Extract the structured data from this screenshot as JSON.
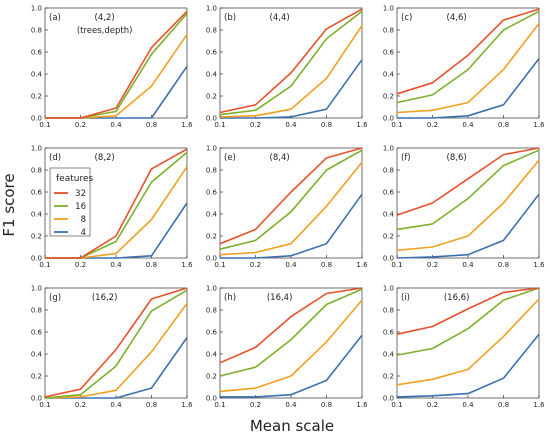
{
  "figure": {
    "xlabel": "Mean scale",
    "ylabel": "F1 score",
    "legend": {
      "title": "features",
      "location": "panel (d) left",
      "entries": [
        {
          "label": "32",
          "color": "#e8502a"
        },
        {
          "label": "16",
          "color": "#7bb02a"
        },
        {
          "label": "8",
          "color": "#f0a020"
        },
        {
          "label": "4",
          "color": "#3d6fb0"
        }
      ]
    },
    "panel_annotation": "(trees,depth)"
  },
  "chart_data": [
    {
      "type": "line",
      "panel": "(a)",
      "title": "(4,2)",
      "x": [
        0.1,
        0.2,
        0.4,
        0.8,
        1.6
      ],
      "xticks": [
        "0.1",
        "0.2",
        "0.4",
        "0.8",
        "1.6"
      ],
      "yticks": [
        "0.0",
        "0.2",
        "0.4",
        "0.6",
        "0.8",
        "1.0"
      ],
      "ylim": [
        0,
        1
      ],
      "xscale": "log2",
      "series": [
        {
          "name": "32",
          "color": "#e8502a",
          "values": [
            0.0,
            0.0,
            0.09,
            0.64,
            0.97
          ]
        },
        {
          "name": "16",
          "color": "#7bb02a",
          "values": [
            0.0,
            0.0,
            0.06,
            0.58,
            0.95
          ]
        },
        {
          "name": "8",
          "color": "#f0a020",
          "values": [
            0.0,
            0.0,
            0.02,
            0.29,
            0.76
          ]
        },
        {
          "name": "4",
          "color": "#3d6fb0",
          "values": [
            0.0,
            0.0,
            0.0,
            0.0,
            0.47
          ]
        }
      ]
    },
    {
      "type": "line",
      "panel": "(b)",
      "title": "(4,4)",
      "x": [
        0.1,
        0.2,
        0.4,
        0.8,
        1.6
      ],
      "xticks": [
        "0.1",
        "0.2",
        "0.4",
        "0.8",
        "1.6"
      ],
      "yticks": [
        "0.0",
        "0.2",
        "0.4",
        "0.6",
        "0.8",
        "1.0"
      ],
      "ylim": [
        0,
        1
      ],
      "xscale": "log2",
      "series": [
        {
          "name": "32",
          "color": "#e8502a",
          "values": [
            0.05,
            0.12,
            0.41,
            0.81,
            0.99
          ]
        },
        {
          "name": "16",
          "color": "#7bb02a",
          "values": [
            0.03,
            0.07,
            0.29,
            0.72,
            0.97
          ]
        },
        {
          "name": "8",
          "color": "#f0a020",
          "values": [
            0.01,
            0.02,
            0.08,
            0.36,
            0.84
          ]
        },
        {
          "name": "4",
          "color": "#3d6fb0",
          "values": [
            0.0,
            0.0,
            0.01,
            0.08,
            0.53
          ]
        }
      ]
    },
    {
      "type": "line",
      "panel": "(c)",
      "title": "(4,6)",
      "x": [
        0.1,
        0.2,
        0.4,
        0.8,
        1.6
      ],
      "xticks": [
        "0.1",
        "0.2",
        "0.4",
        "0.8",
        "1.6"
      ],
      "yticks": [
        "0.0",
        "0.2",
        "0.4",
        "0.6",
        "0.8",
        "1.0"
      ],
      "ylim": [
        0,
        1
      ],
      "xscale": "log2",
      "series": [
        {
          "name": "32",
          "color": "#e8502a",
          "values": [
            0.22,
            0.32,
            0.57,
            0.89,
            0.99
          ]
        },
        {
          "name": "16",
          "color": "#7bb02a",
          "values": [
            0.14,
            0.21,
            0.44,
            0.8,
            0.97
          ]
        },
        {
          "name": "8",
          "color": "#f0a020",
          "values": [
            0.05,
            0.07,
            0.14,
            0.44,
            0.86
          ]
        },
        {
          "name": "4",
          "color": "#3d6fb0",
          "values": [
            0.0,
            0.0,
            0.02,
            0.12,
            0.54
          ]
        }
      ]
    },
    {
      "type": "line",
      "panel": "(d)",
      "title": "(8,2)",
      "x": [
        0.1,
        0.2,
        0.4,
        0.8,
        1.6
      ],
      "xticks": [
        "0.1",
        "0.2",
        "0.4",
        "0.8",
        "1.6"
      ],
      "yticks": [
        "0.0",
        "0.2",
        "0.4",
        "0.6",
        "0.8",
        "1.0"
      ],
      "ylim": [
        0,
        1
      ],
      "xscale": "log2",
      "series": [
        {
          "name": "32",
          "color": "#e8502a",
          "values": [
            0.0,
            0.0,
            0.2,
            0.81,
            0.99
          ]
        },
        {
          "name": "16",
          "color": "#7bb02a",
          "values": [
            0.0,
            0.0,
            0.15,
            0.69,
            0.96
          ]
        },
        {
          "name": "8",
          "color": "#f0a020",
          "values": [
            0.0,
            0.0,
            0.04,
            0.35,
            0.83
          ]
        },
        {
          "name": "4",
          "color": "#3d6fb0",
          "values": [
            0.0,
            0.0,
            0.0,
            0.02,
            0.5
          ]
        }
      ]
    },
    {
      "type": "line",
      "panel": "(e)",
      "title": "(8,4)",
      "x": [
        0.1,
        0.2,
        0.4,
        0.8,
        1.6
      ],
      "xticks": [
        "0.1",
        "0.2",
        "0.4",
        "0.8",
        "1.6"
      ],
      "yticks": [
        "0.0",
        "0.2",
        "0.4",
        "0.6",
        "0.8",
        "1.0"
      ],
      "ylim": [
        0,
        1
      ],
      "xscale": "log2",
      "series": [
        {
          "name": "32",
          "color": "#e8502a",
          "values": [
            0.13,
            0.26,
            0.6,
            0.91,
            1.0
          ]
        },
        {
          "name": "16",
          "color": "#7bb02a",
          "values": [
            0.08,
            0.16,
            0.42,
            0.8,
            0.98
          ]
        },
        {
          "name": "8",
          "color": "#f0a020",
          "values": [
            0.03,
            0.05,
            0.13,
            0.47,
            0.87
          ]
        },
        {
          "name": "4",
          "color": "#3d6fb0",
          "values": [
            0.0,
            0.0,
            0.02,
            0.13,
            0.58
          ]
        }
      ]
    },
    {
      "type": "line",
      "panel": "(f)",
      "title": "(8,6)",
      "x": [
        0.1,
        0.2,
        0.4,
        0.8,
        1.6
      ],
      "xticks": [
        "0.1",
        "0.2",
        "0.4",
        "0.8",
        "1.6"
      ],
      "yticks": [
        "0.0",
        "0.2",
        "0.4",
        "0.6",
        "0.8",
        "1.0"
      ],
      "ylim": [
        0,
        1
      ],
      "xscale": "log2",
      "series": [
        {
          "name": "32",
          "color": "#e8502a",
          "values": [
            0.39,
            0.5,
            0.72,
            0.94,
            1.0
          ]
        },
        {
          "name": "16",
          "color": "#7bb02a",
          "values": [
            0.26,
            0.31,
            0.54,
            0.84,
            0.98
          ]
        },
        {
          "name": "8",
          "color": "#f0a020",
          "values": [
            0.07,
            0.1,
            0.2,
            0.5,
            0.89
          ]
        },
        {
          "name": "4",
          "color": "#3d6fb0",
          "values": [
            0.0,
            0.01,
            0.03,
            0.16,
            0.58
          ]
        }
      ]
    },
    {
      "type": "line",
      "panel": "(g)",
      "title": "(16,2)",
      "x": [
        0.1,
        0.2,
        0.4,
        0.8,
        1.6
      ],
      "xticks": [
        "0.1",
        "0.2",
        "0.4",
        "0.8",
        "1.6"
      ],
      "yticks": [
        "0.0",
        "0.2",
        "0.4",
        "0.6",
        "0.8",
        "1.0"
      ],
      "ylim": [
        0,
        1
      ],
      "xscale": "log2",
      "series": [
        {
          "name": "32",
          "color": "#e8502a",
          "values": [
            0.01,
            0.08,
            0.44,
            0.9,
            1.0
          ]
        },
        {
          "name": "16",
          "color": "#7bb02a",
          "values": [
            0.0,
            0.03,
            0.29,
            0.79,
            0.98
          ]
        },
        {
          "name": "8",
          "color": "#f0a020",
          "values": [
            0.0,
            0.01,
            0.07,
            0.42,
            0.86
          ]
        },
        {
          "name": "4",
          "color": "#3d6fb0",
          "values": [
            0.0,
            0.0,
            0.0,
            0.09,
            0.55
          ]
        }
      ]
    },
    {
      "type": "line",
      "panel": "(h)",
      "title": "(16,4)",
      "x": [
        0.1,
        0.2,
        0.4,
        0.8,
        1.6
      ],
      "xticks": [
        "0.1",
        "0.2",
        "0.4",
        "0.8",
        "1.6"
      ],
      "yticks": [
        "0.0",
        "0.2",
        "0.4",
        "0.6",
        "0.8",
        "1.0"
      ],
      "ylim": [
        0,
        1
      ],
      "xscale": "log2",
      "series": [
        {
          "name": "32",
          "color": "#e8502a",
          "values": [
            0.32,
            0.46,
            0.74,
            0.95,
            1.0
          ]
        },
        {
          "name": "16",
          "color": "#7bb02a",
          "values": [
            0.2,
            0.28,
            0.53,
            0.85,
            0.99
          ]
        },
        {
          "name": "8",
          "color": "#f0a020",
          "values": [
            0.06,
            0.09,
            0.2,
            0.51,
            0.89
          ]
        },
        {
          "name": "4",
          "color": "#3d6fb0",
          "values": [
            0.01,
            0.01,
            0.03,
            0.16,
            0.57
          ]
        }
      ]
    },
    {
      "type": "line",
      "panel": "(i)",
      "title": "(16,6)",
      "x": [
        0.1,
        0.2,
        0.4,
        0.8,
        1.6
      ],
      "xticks": [
        "0.1",
        "0.2",
        "0.4",
        "0.8",
        "1.6"
      ],
      "yticks": [
        "0.0",
        "0.2",
        "0.4",
        "0.6",
        "0.8",
        "1.0"
      ],
      "ylim": [
        0,
        1
      ],
      "xscale": "log2",
      "series": [
        {
          "name": "32",
          "color": "#e8502a",
          "values": [
            0.58,
            0.65,
            0.81,
            0.96,
            1.0
          ]
        },
        {
          "name": "16",
          "color": "#7bb02a",
          "values": [
            0.39,
            0.45,
            0.63,
            0.89,
            1.0
          ]
        },
        {
          "name": "8",
          "color": "#f0a020",
          "values": [
            0.12,
            0.17,
            0.26,
            0.56,
            0.9
          ]
        },
        {
          "name": "4",
          "color": "#3d6fb0",
          "values": [
            0.01,
            0.02,
            0.04,
            0.18,
            0.58
          ]
        }
      ]
    }
  ]
}
